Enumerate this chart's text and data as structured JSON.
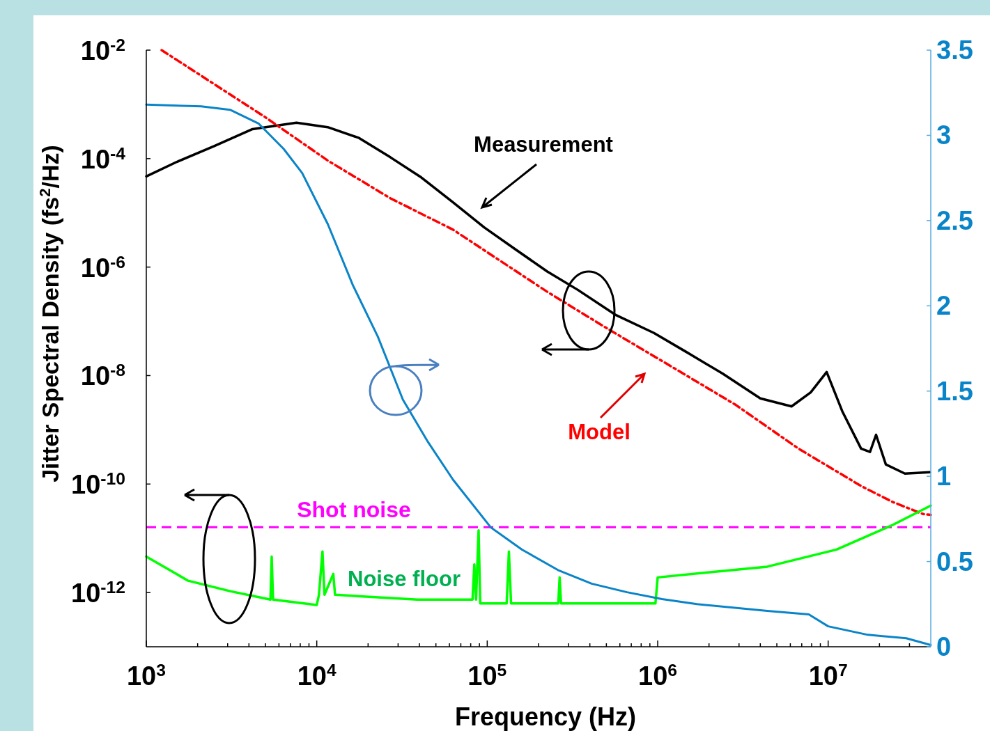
{
  "chart_data": {
    "type": "line",
    "xlabel": "Frequency (Hz)",
    "ylabel": "Jitter Spectral Density (fs$^{2}$/Hz)",
    "log": "xy",
    "xlim": [
      1000,
      40000000
    ],
    "xticks": [
      {
        "value": 1000,
        "label": "10$^{3}$"
      },
      {
        "value": 2000,
        "label": null
      },
      {
        "value": 3000,
        "label": null
      },
      {
        "value": 4000,
        "label": null
      },
      {
        "value": 5000,
        "label": null
      },
      {
        "value": 6000,
        "label": null
      },
      {
        "value": 7000,
        "label": null
      },
      {
        "value": 8000,
        "label": null
      },
      {
        "value": 9000,
        "label": null
      },
      {
        "value": 10000,
        "label": "10$^{4}$"
      },
      {
        "value": 20000,
        "label": null
      },
      {
        "value": 30000,
        "label": null
      },
      {
        "value": 40000,
        "label": null
      },
      {
        "value": 50000,
        "label": null
      },
      {
        "value": 60000,
        "label": null
      },
      {
        "value": 70000,
        "label": null
      },
      {
        "value": 80000,
        "label": null
      },
      {
        "value": 90000,
        "label": null
      },
      {
        "value": 100000,
        "label": "10$^{5}$"
      },
      {
        "value": 200000,
        "label": null
      },
      {
        "value": 300000,
        "label": null
      },
      {
        "value": 400000,
        "label": null
      },
      {
        "value": 500000,
        "label": null
      },
      {
        "value": 600000,
        "label": null
      },
      {
        "value": 700000,
        "label": null
      },
      {
        "value": 800000,
        "label": null
      },
      {
        "value": 900000,
        "label": null
      },
      {
        "value": 1000000,
        "label": "10$^{6}$"
      },
      {
        "value": 2000000,
        "label": null
      },
      {
        "value": 3000000,
        "label": null
      },
      {
        "value": 4000000,
        "label": null
      },
      {
        "value": 5000000,
        "label": null
      },
      {
        "value": 6000000,
        "label": null
      },
      {
        "value": 7000000,
        "label": null
      },
      {
        "value": 8000000,
        "label": null
      },
      {
        "value": 9000000,
        "label": null
      },
      {
        "value": 10000000,
        "label": "10$^{7}$"
      },
      {
        "value": 20000000,
        "label": null
      },
      {
        "value": 30000000,
        "label": null
      }
    ],
    "ylim": [
      1e-13,
      0.01
    ],
    "yticks": [
      {
        "value": 1e-12,
        "label": "10$^{-12}$"
      },
      {
        "value": 1e-10,
        "label": "10$^{-10}$"
      },
      {
        "value": 1e-08,
        "label": "10$^{-8}$"
      },
      {
        "value": 1e-06,
        "label": "10$^{-6}$"
      },
      {
        "value": 0.0001,
        "label": "10$^{-4}$"
      },
      {
        "value": 0.01,
        "label": "10$^{-2}$"
      }
    ],
    "y2lim": [
      0,
      3.5
    ],
    "y2ticks": [
      0,
      0.5,
      1,
      1.5,
      2,
      2.5,
      3,
      3.5
    ],
    "ref_lines": [
      {
        "axis": "y",
        "value": 1.6e-11,
        "label": "Shot noise",
        "color": "#ff00ff",
        "line_style": "dashed"
      }
    ],
    "series": [
      {
        "name": "Measurement",
        "color": "#000000",
        "line_style": "solid",
        "x": [
          1000,
          1510,
          2500,
          4200,
          7600,
          11600,
          17700,
          27000,
          41000,
          63000,
          96000,
          147000,
          225000,
          340000,
          570000,
          950000,
          1450000,
          2400000,
          4000000,
          6100000,
          7900000,
          9800000,
          12100000,
          15600000,
          17600000,
          19100000,
          21800000,
          28200000,
          39500000
        ],
        "values": [
          4.7e-05,
          8.7e-05,
          0.00017,
          0.00035,
          0.00046,
          0.00038,
          0.00024,
          0.000106,
          4.5e-05,
          1.56e-05,
          5.4e-06,
          2.1e-06,
          8.3e-07,
          3.8e-07,
          1.3e-07,
          6.1e-08,
          2.8e-08,
          1.09e-08,
          3.8e-09,
          2.7e-09,
          4.9e-09,
          1.16e-08,
          2.2e-09,
          4.5e-10,
          3.9e-10,
          8.1e-10,
          2.3e-10,
          1.56e-10,
          1.65e-10
        ]
      },
      {
        "name": "Model",
        "color": "#ff0000",
        "line_style": "dashdot",
        "x": [
          1230,
          4950,
          11600,
          27000,
          63000,
          105000,
          225000,
          520000,
          1220000,
          2860000,
          6700000,
          15600000,
          23800000,
          36000000,
          40000000
        ],
        "values": [
          0.01,
          0.00059,
          9.2e-05,
          1.86e-05,
          4.9e-06,
          1.7e-06,
          3.5e-07,
          7e-08,
          1.43e-08,
          2.9e-09,
          4.5e-10,
          9.2e-11,
          4.7e-11,
          2.8e-11,
          2.7e-11
        ]
      },
      {
        "name": "Noise floor",
        "color": "#00ff00",
        "line_style": "solid",
        "x": [
          1000,
          1760,
          3100,
          5350,
          5440,
          5540,
          10000,
          10300,
          10800,
          11100,
          12500,
          12800,
          39000,
          82000,
          84000,
          86000,
          89000,
          91000,
          130000,
          134000,
          138000,
          261000,
          266000,
          271000,
          970000,
          1000000,
          4400000,
          11200000,
          23800000,
          40000000
        ],
        "values": [
          4.6e-12,
          1.65e-12,
          1.06e-12,
          7.4e-13,
          4.6e-12,
          7.4e-13,
          5.9e-13,
          9.1e-13,
          5.7e-12,
          9.1e-13,
          2.2e-12,
          9.1e-13,
          7.4e-13,
          7.4e-13,
          3.3e-12,
          7.4e-13,
          1.4e-11,
          6.3e-13,
          6.3e-13,
          5.7e-12,
          6.3e-13,
          6.3e-13,
          1.9e-12,
          6.3e-13,
          6.3e-13,
          1.9e-12,
          3e-12,
          6.2e-12,
          1.75e-11,
          4e-11
        ]
      },
      {
        "color": "#0a84c8",
        "line_style": "solid",
        "axis": "y2",
        "x": [
          1000,
          2100,
          3100,
          4550,
          6400,
          8200,
          11600,
          16300,
          22800,
          32000,
          45000,
          63000,
          105000,
          160000,
          260000,
          410000,
          660000,
          1060000,
          1700000,
          4400000,
          7700000,
          10000000,
          17100000,
          28700000,
          40000000
        ],
        "values": [
          3.18,
          3.17,
          3.15,
          3.07,
          2.92,
          2.78,
          2.48,
          2.12,
          1.82,
          1.45,
          1.2,
          0.98,
          0.7,
          0.57,
          0.45,
          0.37,
          0.32,
          0.28,
          0.25,
          0.21,
          0.19,
          0.12,
          0.07,
          0.05,
          0.01
        ]
      }
    ]
  }
}
